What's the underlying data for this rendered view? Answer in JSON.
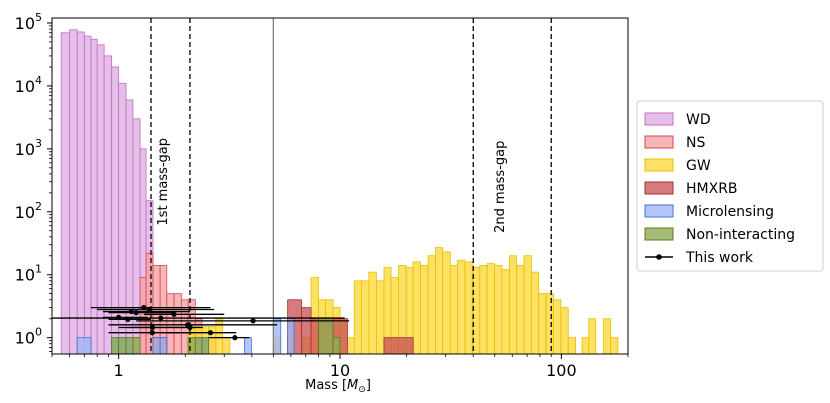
{
  "chart_data": {
    "type": "histogram",
    "xlabel": "Mass [M⊙]",
    "xlabel_main": "Mass [",
    "xlabel_sym": "M",
    "xlabel_sub": "⊙",
    "xlabel_end": "]",
    "xscale": "log",
    "yscale": "log",
    "xlim": [
      0.5,
      200
    ],
    "ylim": [
      0.55,
      120000
    ],
    "x_ticks": [
      {
        "v": 1,
        "label": "1"
      },
      {
        "v": 10,
        "label": "10"
      },
      {
        "v": 100,
        "label": "100"
      }
    ],
    "y_ticks": [
      {
        "v": 1,
        "base": "10",
        "exp": "0"
      },
      {
        "v": 10,
        "base": "10",
        "exp": "1"
      },
      {
        "v": 100,
        "base": "10",
        "exp": "2"
      },
      {
        "v": 1000,
        "base": "10",
        "exp": "3"
      },
      {
        "v": 10000,
        "base": "10",
        "exp": "4"
      },
      {
        "v": 100000,
        "base": "10",
        "exp": "5"
      }
    ],
    "legend_position": "outside-right",
    "vlines": [
      {
        "x": 1.4,
        "style": "dashed"
      },
      {
        "x": 2.1,
        "style": "dashed"
      },
      {
        "x": 5.0,
        "style": "solid"
      },
      {
        "x": 40,
        "style": "dashed"
      },
      {
        "x": 90,
        "style": "dashed"
      }
    ],
    "annotations": [
      {
        "text": "1st mass-gap",
        "x": 1.65,
        "y": 300
      },
      {
        "text": "2nd mass-gap",
        "x": 55,
        "y": 250
      }
    ],
    "series": [
      {
        "name": "WD",
        "color": "#e0b4e3",
        "edge": "#c36bc8",
        "alpha": 0.85,
        "bins": [
          [
            0.55,
            0.6,
            70000
          ],
          [
            0.6,
            0.65,
            78000
          ],
          [
            0.65,
            0.7,
            72000
          ],
          [
            0.7,
            0.75,
            62000
          ],
          [
            0.75,
            0.8,
            55000
          ],
          [
            0.8,
            0.86,
            45000
          ],
          [
            0.86,
            0.93,
            30000
          ],
          [
            0.93,
            1.0,
            20000
          ],
          [
            1.0,
            1.08,
            11000
          ],
          [
            1.08,
            1.16,
            6000
          ],
          [
            1.16,
            1.25,
            3000
          ],
          [
            1.25,
            1.33,
            1000
          ],
          [
            1.33,
            1.43,
            150
          ]
        ]
      },
      {
        "name": "NS",
        "color": "#f4a3a6",
        "edge": "#d9474d",
        "alpha": 0.8,
        "bins": [
          [
            1.16,
            1.25,
            1
          ],
          [
            1.25,
            1.33,
            9
          ],
          [
            1.33,
            1.43,
            22
          ],
          [
            1.43,
            1.54,
            14
          ],
          [
            1.54,
            1.65,
            14
          ],
          [
            1.65,
            1.78,
            5
          ],
          [
            1.78,
            1.92,
            5
          ],
          [
            1.92,
            2.06,
            4
          ],
          [
            2.06,
            2.22,
            4
          ],
          [
            2.22,
            2.38,
            2
          ],
          [
            2.38,
            2.55,
            1
          ],
          [
            2.55,
            2.75,
            1
          ]
        ]
      },
      {
        "name": "GW",
        "color": "#fddc46",
        "edge": "#e6bf00",
        "alpha": 0.85,
        "bins": [
          [
            1.43,
            1.54,
            1
          ],
          [
            2.06,
            2.22,
            1.5
          ],
          [
            2.22,
            2.38,
            1.5
          ],
          [
            2.38,
            2.55,
            1.5
          ],
          [
            2.55,
            2.75,
            1.5
          ],
          [
            2.75,
            2.95,
            2
          ],
          [
            2.95,
            3.18,
            1
          ],
          [
            5.0,
            5.4,
            1
          ],
          [
            5.8,
            6.2,
            1
          ],
          [
            6.8,
            7.4,
            1
          ],
          [
            7.4,
            8.0,
            9
          ],
          [
            8.0,
            8.6,
            4
          ],
          [
            8.6,
            9.3,
            4
          ],
          [
            9.3,
            10.0,
            3
          ],
          [
            10.0,
            10.8,
            2
          ],
          [
            10.8,
            11.6,
            1
          ],
          [
            11.6,
            12.5,
            8
          ],
          [
            12.5,
            13.5,
            8
          ],
          [
            13.5,
            14.6,
            11
          ],
          [
            14.6,
            15.8,
            8
          ],
          [
            15.8,
            17.0,
            13
          ],
          [
            17.0,
            18.4,
            9
          ],
          [
            18.4,
            19.9,
            14
          ],
          [
            19.9,
            21.4,
            13
          ],
          [
            21.4,
            23.1,
            16
          ],
          [
            23.1,
            25.0,
            14
          ],
          [
            25.0,
            27.0,
            20
          ],
          [
            27.0,
            29.1,
            27
          ],
          [
            29.1,
            31.5,
            23
          ],
          [
            31.5,
            34.0,
            14
          ],
          [
            34.0,
            36.7,
            17
          ],
          [
            36.7,
            39.6,
            16
          ],
          [
            39.6,
            42.8,
            13
          ],
          [
            42.8,
            46.2,
            14
          ],
          [
            46.2,
            49.9,
            15
          ],
          [
            49.9,
            53.9,
            14
          ],
          [
            53.9,
            58.2,
            12
          ],
          [
            58.2,
            62.8,
            20
          ],
          [
            62.8,
            67.8,
            14
          ],
          [
            67.8,
            73.2,
            20
          ],
          [
            73.2,
            79.0,
            11
          ],
          [
            79.0,
            85.3,
            5
          ],
          [
            85.3,
            92.1,
            5
          ],
          [
            92.1,
            99.5,
            4
          ],
          [
            99.5,
            107.4,
            3
          ],
          [
            107.4,
            116.0,
            1
          ],
          [
            124.0,
            133.0,
            1
          ],
          [
            133.0,
            143.0,
            2
          ],
          [
            155.0,
            167.0,
            2
          ],
          [
            167.0,
            180.0,
            1
          ]
        ]
      },
      {
        "name": "HMXRB",
        "color": "#c84e53",
        "edge": "#a32e33",
        "alpha": 0.75,
        "bins": [
          [
            1.43,
            1.54,
            1
          ],
          [
            1.54,
            1.65,
            1
          ],
          [
            5.8,
            6.7,
            4
          ],
          [
            6.7,
            7.4,
            3
          ],
          [
            7.4,
            8.0,
            2
          ],
          [
            8.0,
            9.3,
            2
          ],
          [
            9.3,
            10.8,
            2
          ],
          [
            15.8,
            21.4,
            1
          ]
        ]
      },
      {
        "name": "Microlensing",
        "color": "#9fb8f5",
        "edge": "#4a6fd8",
        "alpha": 0.8,
        "bins": [
          [
            0.65,
            0.75,
            1
          ],
          [
            0.93,
            1.0,
            1
          ],
          [
            1.0,
            1.08,
            1
          ],
          [
            1.08,
            1.16,
            1
          ],
          [
            1.43,
            1.54,
            1
          ],
          [
            1.54,
            1.65,
            1
          ],
          [
            2.22,
            2.38,
            1
          ],
          [
            2.38,
            2.55,
            1
          ],
          [
            3.7,
            3.98,
            1
          ],
          [
            5.0,
            5.4,
            2
          ],
          [
            5.8,
            6.2,
            2
          ]
        ]
      },
      {
        "name": "Non-interacting",
        "color": "#8faa52",
        "edge": "#5b7a22",
        "alpha": 0.8,
        "bins": [
          [
            0.93,
            1.0,
            1
          ],
          [
            1.0,
            1.08,
            1
          ],
          [
            1.08,
            1.16,
            1
          ],
          [
            1.16,
            1.25,
            1
          ],
          [
            2.06,
            2.22,
            1
          ],
          [
            2.22,
            2.38,
            1
          ],
          [
            2.38,
            2.55,
            1
          ],
          [
            8.0,
            9.3,
            2
          ],
          [
            9.3,
            10.0,
            1
          ]
        ]
      }
    ],
    "this_work": {
      "name": "This work",
      "color": "#000000",
      "points": [
        {
          "x": 1.3,
          "y": 3.0,
          "xlo": 0.75,
          "xhi": 2.6
        },
        {
          "x": 1.38,
          "y": 2.8,
          "xlo": 0.8,
          "xhi": 2.7
        },
        {
          "x": 1.14,
          "y": 2.6,
          "xlo": 0.85,
          "xhi": 2.1
        },
        {
          "x": 1.2,
          "y": 2.5,
          "xlo": 0.9,
          "xhi": 1.8
        },
        {
          "x": 1.78,
          "y": 2.35,
          "xlo": 1.3,
          "xhi": 3.0
        },
        {
          "x": 1.0,
          "y": 2.1,
          "xlo": 0.85,
          "xhi": 1.35
        },
        {
          "x": 1.55,
          "y": 2.05,
          "xlo": 0.5,
          "xhi": 10.5
        },
        {
          "x": 1.1,
          "y": 1.95,
          "xlo": 0.9,
          "xhi": 1.4
        },
        {
          "x": 4.05,
          "y": 1.85,
          "xlo": 1.2,
          "xhi": 11.0
        },
        {
          "x": 2.05,
          "y": 1.6,
          "xlo": 0.9,
          "xhi": 5.2
        },
        {
          "x": 1.42,
          "y": 1.45,
          "xlo": 1.0,
          "xhi": 2.2
        },
        {
          "x": 2.1,
          "y": 1.45,
          "xlo": 1.1,
          "xhi": 2.4
        },
        {
          "x": 2.6,
          "y": 1.2,
          "xlo": 1.6,
          "xhi": 3.4
        },
        {
          "x": 1.42,
          "y": 1.2,
          "xlo": 0.9,
          "xhi": 2.2
        },
        {
          "x": 3.35,
          "y": 1.0,
          "xlo": 2.55,
          "xhi": 3.9
        }
      ]
    }
  }
}
